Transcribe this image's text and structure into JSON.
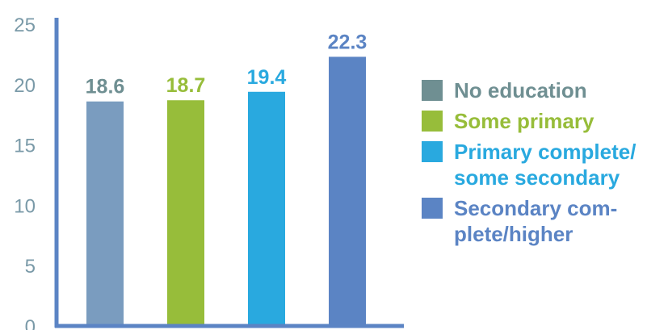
{
  "chart_data": {
    "type": "bar",
    "categories": [
      "No education",
      "Some primary",
      "Primary complete/ some secondary",
      "Secondary com- plete/higher"
    ],
    "values": [
      18.6,
      18.7,
      19.4,
      22.3
    ],
    "value_labels": [
      "18.6",
      "18.7",
      "19.4",
      "22.3"
    ],
    "ylim": [
      0,
      25
    ],
    "yticks": [
      "0",
      "5",
      "10",
      "15",
      "20",
      "25"
    ],
    "grid": false,
    "legend_position": "right",
    "colors": {
      "bars": [
        "#7a9cbf",
        "#97bd3a",
        "#29a9df",
        "#5b84c4"
      ],
      "labels": [
        "#6f8f92",
        "#97bd3a",
        "#29a9df",
        "#5b84c4"
      ],
      "axis": "#5b84c4",
      "ticks": "#7a9aa8"
    },
    "legend": [
      {
        "label": "No education",
        "swatch": "#6f8f92",
        "text": "#6f8f92"
      },
      {
        "label": "Some primary",
        "swatch": "#97bd3a",
        "text": "#97bd3a"
      },
      {
        "label": "Primary complete/ some secondary",
        "swatch": "#29a9df",
        "text": "#29a9df"
      },
      {
        "label": "Secondary com- plete/higher",
        "swatch": "#5b84c4",
        "text": "#5b84c4"
      }
    ]
  }
}
